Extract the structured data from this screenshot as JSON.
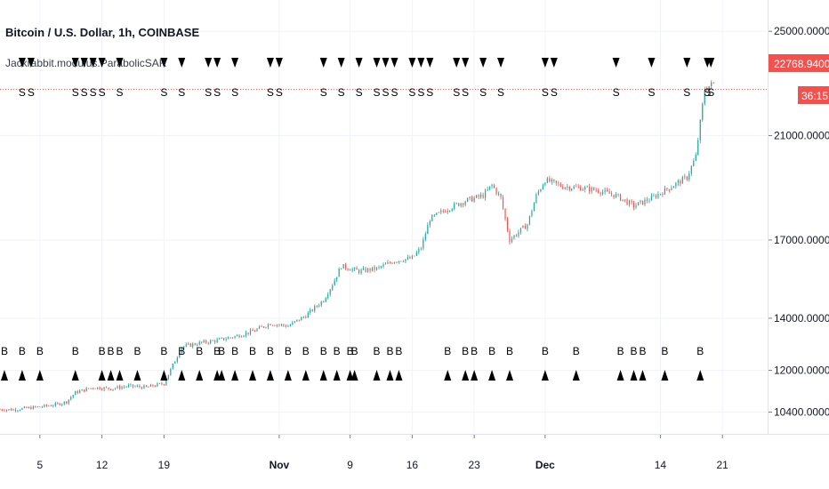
{
  "header": {
    "title": "Bitcoin / U.S. Dollar, 1h, COINBASE",
    "study": "Jackrabbit.modulus.ParabolicSAR"
  },
  "price_label": {
    "value": "22768.9400",
    "countdown": "36:15",
    "color": "#ef5350"
  },
  "colors": {
    "up": "#26a69a",
    "down": "#ef5350",
    "grid": "#f0f3fa",
    "axis": "#787b86",
    "signal": "#000000"
  },
  "chart_data": {
    "type": "candlestick",
    "title": "Bitcoin / U.S. Dollar, 1h, COINBASE",
    "ylim": [
      9600,
      26200
    ],
    "last_price": 22768.94,
    "y_ticks": [
      "25000.0000",
      "21000.0000",
      "17000.0000",
      "14000.0000",
      "12000.0000",
      "10400.0000"
    ],
    "y_tick_values": [
      25000,
      21000,
      17000,
      14000,
      12000,
      10400
    ],
    "x_ticks": [
      "5",
      "12",
      "19",
      "Nov",
      "9",
      "16",
      "23",
      "Dec",
      "14",
      "21"
    ],
    "x_tick_days": [
      5,
      12,
      19,
      32,
      40,
      47,
      54,
      62,
      75,
      82
    ],
    "x_tick_bold": [
      false,
      false,
      false,
      true,
      false,
      false,
      false,
      true,
      false,
      false
    ],
    "xlim_days": [
      0.5,
      87
    ],
    "close_path": [
      [
        2,
        10500
      ],
      [
        5,
        10600
      ],
      [
        7,
        10700
      ],
      [
        8,
        10800
      ],
      [
        9,
        11150
      ],
      [
        11,
        11350
      ],
      [
        13,
        11300
      ],
      [
        15,
        11400
      ],
      [
        17,
        11350
      ],
      [
        19,
        11500
      ],
      [
        20,
        12200
      ],
      [
        21,
        12900
      ],
      [
        23,
        13050
      ],
      [
        25,
        13150
      ],
      [
        27,
        13300
      ],
      [
        29,
        13500
      ],
      [
        31,
        13800
      ],
      [
        33,
        13700
      ],
      [
        35,
        14100
      ],
      [
        37,
        14700
      ],
      [
        38,
        15300
      ],
      [
        39,
        16000
      ],
      [
        41,
        15800
      ],
      [
        43,
        15900
      ],
      [
        45,
        16200
      ],
      [
        47,
        16300
      ],
      [
        48,
        16700
      ],
      [
        49,
        17800
      ],
      [
        51,
        18200
      ],
      [
        53,
        18500
      ],
      [
        55,
        18700
      ],
      [
        56,
        19100
      ],
      [
        57,
        18600
      ],
      [
        58,
        17000
      ],
      [
        60,
        17600
      ],
      [
        61,
        18700
      ],
      [
        62,
        19300
      ],
      [
        64,
        19050
      ],
      [
        66,
        19000
      ],
      [
        68,
        18900
      ],
      [
        70,
        18700
      ],
      [
        72,
        18300
      ],
      [
        74,
        18600
      ],
      [
        76,
        19000
      ],
      [
        78,
        19400
      ],
      [
        79,
        20200
      ],
      [
        80,
        22800
      ],
      [
        81,
        23000
      ]
    ],
    "sell_signals": [
      3,
      4,
      9,
      10,
      11,
      12,
      14,
      19,
      21,
      24,
      25,
      27,
      31,
      32,
      37,
      39,
      41,
      43,
      44,
      45,
      47,
      48,
      49,
      52,
      53,
      55,
      57,
      62,
      63,
      70,
      74,
      78,
      80.3,
      80.7
    ],
    "buy_signals": [
      1,
      3,
      5,
      9,
      12,
      13,
      14,
      16,
      19,
      21,
      23,
      25,
      25.5,
      27,
      29,
      31,
      33,
      35,
      37,
      38.5,
      40,
      40.5,
      43,
      44.5,
      45.5,
      51,
      53,
      54,
      56,
      58,
      62,
      65.5,
      70.5,
      72,
      73,
      75.5,
      79.5
    ],
    "signal_letters": {
      "sell": "S",
      "buy": "B"
    }
  }
}
